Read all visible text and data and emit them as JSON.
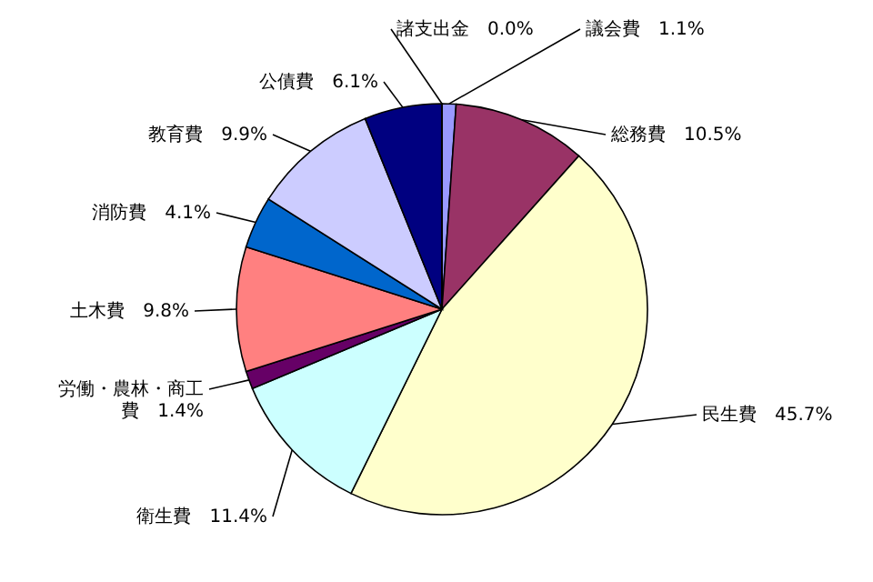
{
  "chart_data": {
    "type": "pie",
    "categories": [
      "議会費",
      "総務費",
      "民生費",
      "衛生費",
      "労働・農林・商工費",
      "土木費",
      "消防費",
      "教育費",
      "公債費",
      "諸支出金"
    ],
    "values": [
      1.1,
      10.5,
      45.7,
      11.4,
      1.4,
      9.8,
      4.1,
      9.9,
      6.1,
      0.0
    ],
    "value_labels": [
      "1.1%",
      "10.5%",
      "45.7%",
      "11.4%",
      "1.4%",
      "9.8%",
      "4.1%",
      "9.9%",
      "6.1%",
      "0.0%"
    ],
    "colors": [
      "#9999ff",
      "#993366",
      "#ffffcc",
      "#ccffff",
      "#660066",
      "#ff8080",
      "#0066cc",
      "#ccccff",
      "#000080",
      "#ff00ff"
    ]
  }
}
